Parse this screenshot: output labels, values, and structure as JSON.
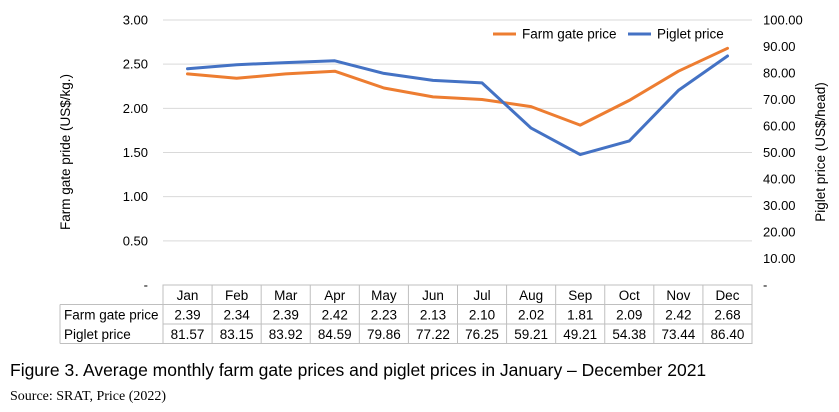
{
  "chart_data": {
    "type": "line",
    "categories": [
      "Jan",
      "Feb",
      "Mar",
      "Apr",
      "May",
      "Jun",
      "Jul",
      "Aug",
      "Sep",
      "Oct",
      "Nov",
      "Dec"
    ],
    "series": [
      {
        "name": "Farm gate price",
        "axis": "left",
        "color": "#ED7D31",
        "values": [
          2.39,
          2.34,
          2.39,
          2.42,
          2.23,
          2.13,
          2.1,
          2.02,
          1.81,
          2.09,
          2.42,
          2.68
        ],
        "labels": [
          "2.39",
          "2.34",
          "2.39",
          "2.42",
          "2.23",
          "2.13",
          "2.10",
          "2.02",
          "1.81",
          "2.09",
          "2.42",
          "2.68"
        ]
      },
      {
        "name": "Piglet price",
        "axis": "right",
        "color": "#4472C4",
        "values": [
          81.57,
          83.15,
          83.92,
          84.59,
          79.86,
          77.22,
          76.25,
          59.21,
          49.21,
          54.38,
          73.44,
          86.4
        ],
        "labels": [
          "81.57",
          "83.15",
          "83.92",
          "84.59",
          "79.86",
          "77.22",
          "76.25",
          "59.21",
          "49.21",
          "54.38",
          "73.44",
          "86.40"
        ]
      }
    ],
    "y_left": {
      "label": "Farm gate pride (US$/kg.)",
      "range": [
        0,
        3
      ],
      "ticks": [
        0,
        0.5,
        1,
        1.5,
        2,
        2.5,
        3
      ],
      "tick_labels": [
        "-",
        "0.50",
        "1.00",
        "1.50",
        "2.00",
        "2.50",
        "3.00"
      ]
    },
    "y_right": {
      "label": "Piglet price (US$/head)",
      "range": [
        0,
        100
      ],
      "ticks": [
        0,
        10,
        20,
        30,
        40,
        50,
        60,
        70,
        80,
        90,
        100
      ],
      "tick_labels": [
        "-",
        "10.00",
        "20.00",
        "30.00",
        "40.00",
        "50.00",
        "60.00",
        "70.00",
        "80.00",
        "90.00",
        "100.00"
      ]
    },
    "grid": true,
    "legend": "top-right",
    "data_table": true
  },
  "caption": "Figure 3. Average monthly farm gate prices and piglet prices in January – December 2021",
  "source": "Source: SRAT, Price (2022)"
}
